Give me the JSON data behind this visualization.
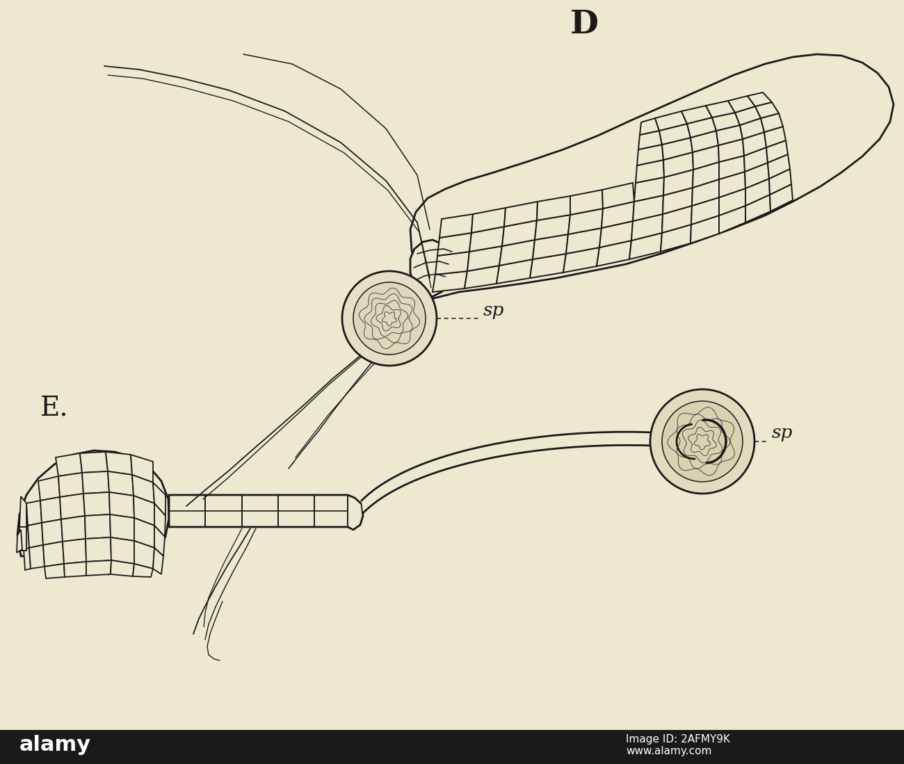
{
  "background_color": "#ede8d0",
  "line_color": "#1a1a1a",
  "cell_fill": "#ede8d0",
  "label_D": "D",
  "label_E": "E.",
  "label_sp": "sp",
  "fig_width": 13.0,
  "fig_height": 10.99,
  "dpi": 100,
  "lw_main": 2.0,
  "lw_thin": 1.3,
  "lw_cell": 1.5
}
